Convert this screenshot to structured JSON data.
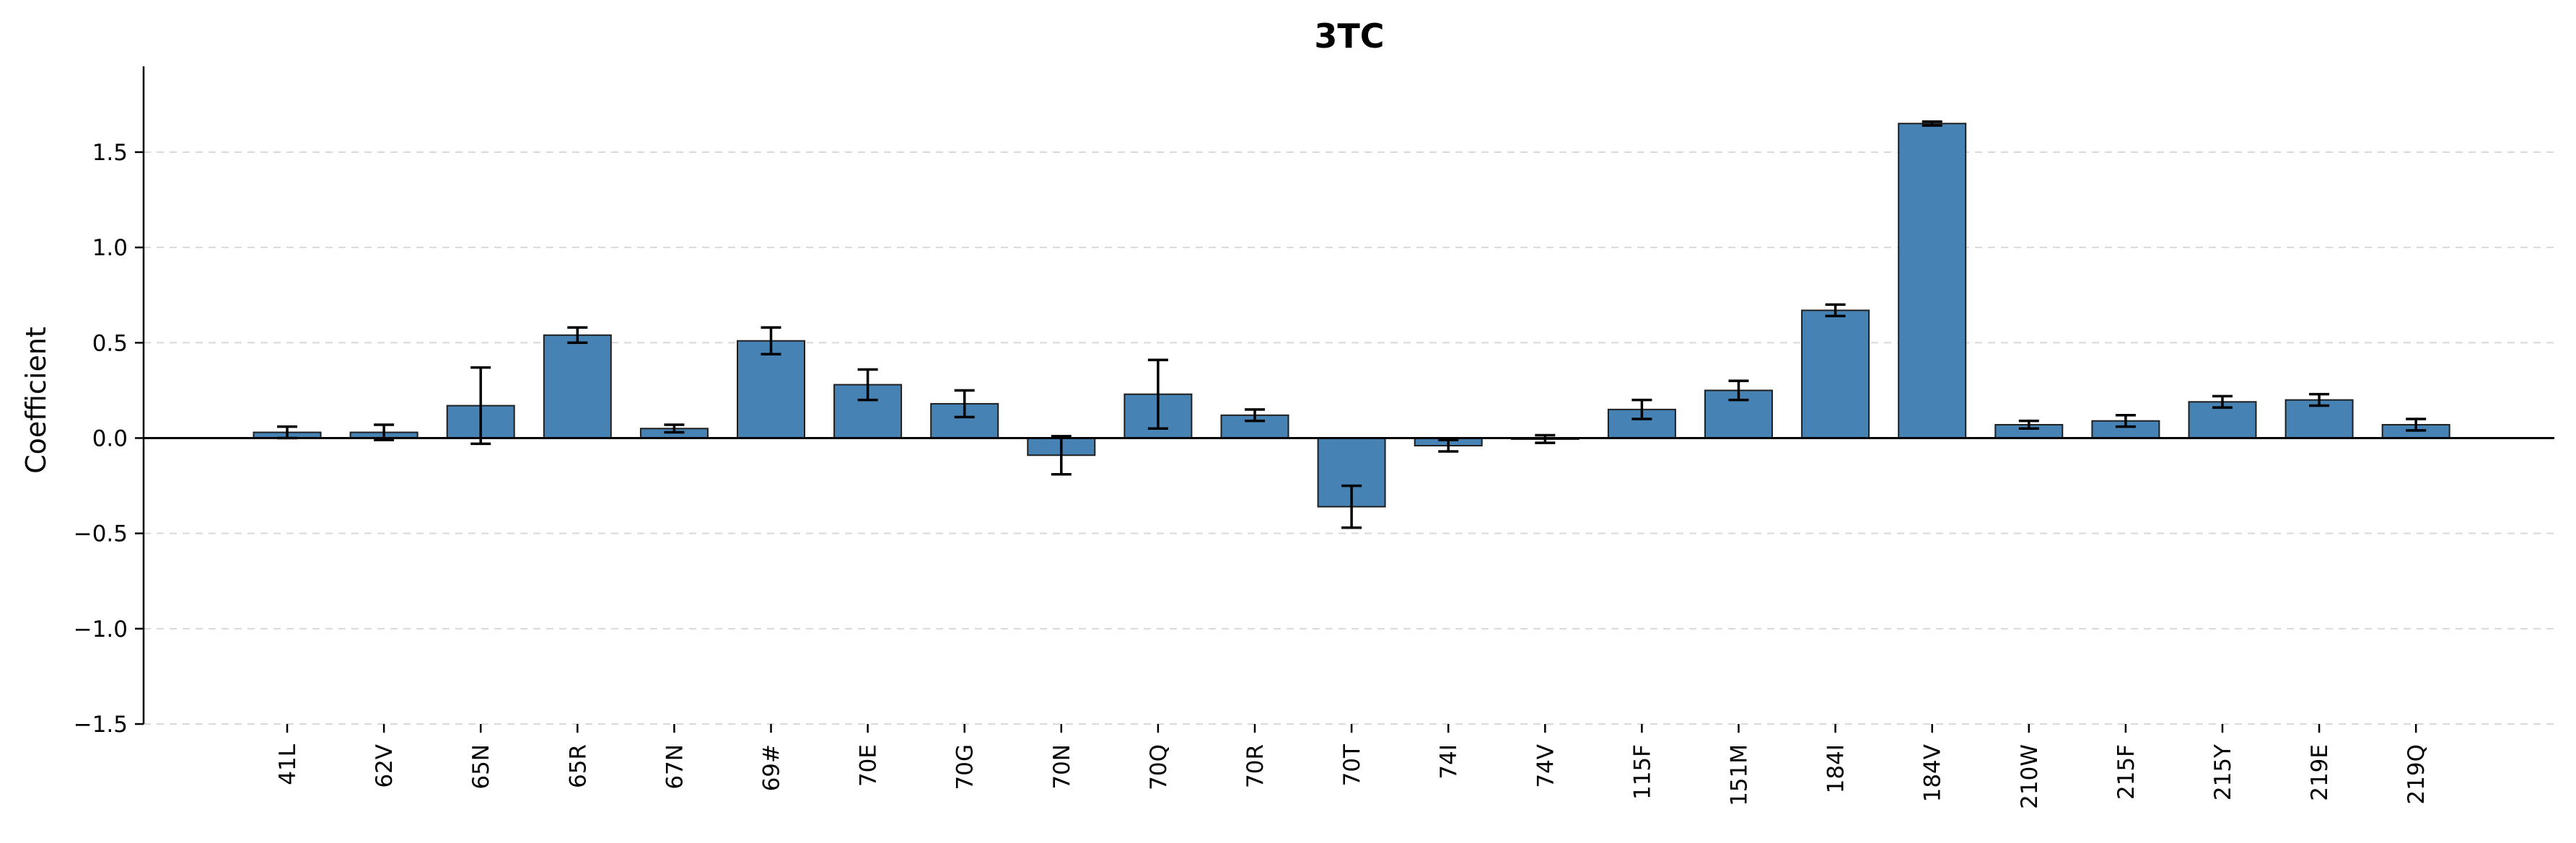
{
  "chart_data": {
    "type": "bar",
    "title": "3TC",
    "xlabel": "",
    "ylabel": "Coefficient",
    "ylim": [
      -1.5,
      1.95
    ],
    "yticks": [
      -1.5,
      -1.0,
      -0.5,
      0.0,
      0.5,
      1.0,
      1.5
    ],
    "ytick_labels": [
      "−1.5",
      "−1.0",
      "−0.5",
      "0.0",
      "0.5",
      "1.0",
      "1.5"
    ],
    "grid": true,
    "bar_color": "#4682b4",
    "categories": [
      "41L",
      "62V",
      "65N",
      "65R",
      "67N",
      "69#",
      "70E",
      "70G",
      "70N",
      "70Q",
      "70R",
      "70T",
      "74I",
      "74V",
      "115F",
      "151M",
      "184I",
      "184V",
      "210W",
      "215F",
      "215Y",
      "219E",
      "219Q"
    ],
    "values": [
      0.03,
      0.03,
      0.17,
      0.54,
      0.05,
      0.51,
      0.28,
      0.18,
      -0.09,
      0.23,
      0.12,
      -0.36,
      -0.04,
      -0.005,
      0.15,
      0.25,
      0.67,
      1.65,
      0.07,
      0.09,
      0.19,
      0.2,
      0.07
    ],
    "errors": [
      0.03,
      0.04,
      0.2,
      0.04,
      0.02,
      0.07,
      0.08,
      0.07,
      0.1,
      0.18,
      0.03,
      0.11,
      0.03,
      0.02,
      0.05,
      0.05,
      0.03,
      0.01,
      0.02,
      0.03,
      0.03,
      0.03,
      0.03
    ]
  }
}
